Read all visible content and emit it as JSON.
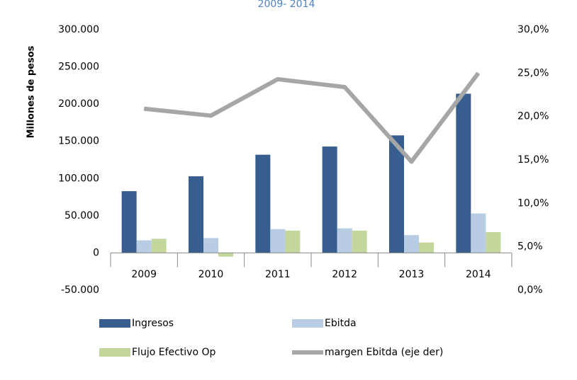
{
  "chart_data": {
    "type": "bar_line",
    "title": "2009- 2014",
    "ylabel": "Millones de pesos",
    "categories": [
      "2009",
      "2010",
      "2011",
      "2012",
      "2013",
      "2014"
    ],
    "series": [
      {
        "name": "Ingresos",
        "color": "#375e8f",
        "type": "bar",
        "values": [
          83000,
          103000,
          132000,
          143000,
          158000,
          214000
        ]
      },
      {
        "name": "Ebitda",
        "color": "#b8cce4",
        "type": "bar",
        "values": [
          17000,
          20000,
          32000,
          33000,
          24000,
          53000
        ]
      },
      {
        "name": "Flujo Efectivo Op",
        "color": "#c3d69b",
        "type": "bar",
        "values": [
          19000,
          -5000,
          30000,
          30000,
          14000,
          28000
        ]
      },
      {
        "name": "margen Ebitda (eje der)",
        "color": "#a6a6a6",
        "type": "line",
        "axis": "y2",
        "values": [
          20.9,
          20.1,
          24.3,
          23.4,
          14.8,
          25.0
        ]
      }
    ],
    "ylim": [
      -50000,
      300000
    ],
    "yticks": [
      {
        "value": -50000,
        "label": "-50.000"
      },
      0,
      {
        "value": 50000,
        "label": "50.000"
      },
      {
        "value": 100000,
        "label": "100.000"
      },
      {
        "value": 150000,
        "label": "150.000"
      },
      {
        "value": 200000,
        "label": "200.000"
      },
      {
        "value": 250000,
        "label": "250.000"
      },
      {
        "value": 300000,
        "label": "300.000"
      }
    ],
    "y2lim": [
      0,
      30
    ],
    "y2ticks": [
      {
        "value": 0,
        "label": "0,0%"
      },
      {
        "value": 5,
        "label": "5,0%"
      },
      {
        "value": 10,
        "label": "10,0%"
      },
      {
        "value": 15,
        "label": "15,0%"
      },
      {
        "value": 20,
        "label": "20,0%"
      },
      {
        "value": 25,
        "label": "25,0%"
      },
      {
        "value": 30,
        "label": "30,0%"
      }
    ],
    "grid": false,
    "legend": "bottom"
  }
}
